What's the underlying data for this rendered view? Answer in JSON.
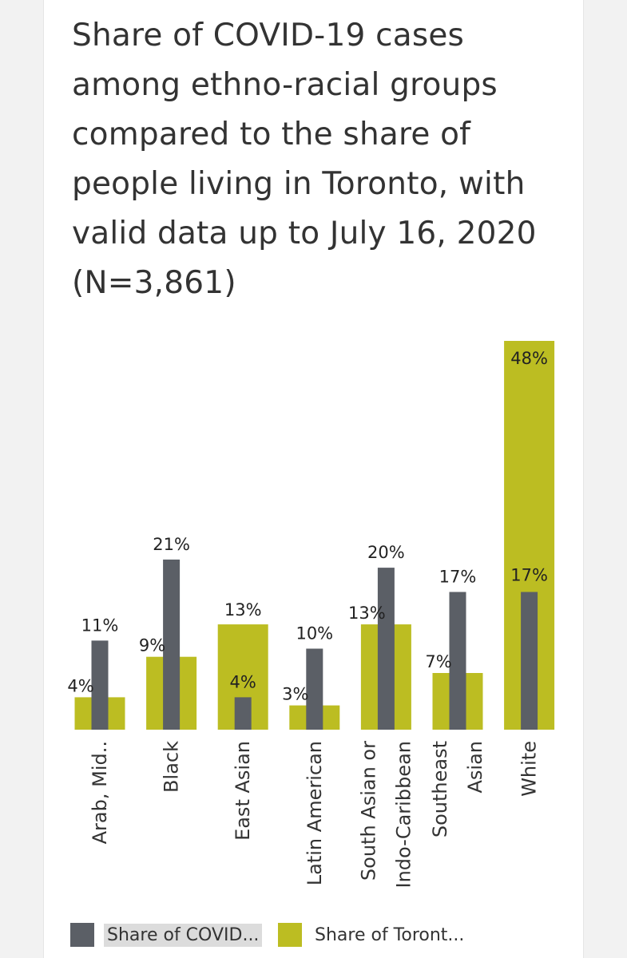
{
  "title": "Share of COVID-19 cases among ethno-racial groups compared to the share of people living in Toronto, with valid data up to July 16, 2020 (N=3,861)",
  "colors": {
    "covid": "#5b5f66",
    "toronto": "#bcbd22"
  },
  "legend": {
    "covid_label": "Share of COVID...",
    "toronto_label": "Share of Toront..."
  },
  "chart_data": {
    "type": "bar",
    "title": "Share of COVID-19 cases among ethno-racial groups compared to the share of people living in Toronto, with valid data up to July 16, 2020 (N=3,861)",
    "categories": [
      [
        "Arab, Mid.."
      ],
      [
        "Black"
      ],
      [
        "East Asian"
      ],
      [
        "Latin American"
      ],
      [
        "South Asian or",
        "Indo-Caribbean"
      ],
      [
        "Southeast",
        "Asian"
      ],
      [
        "White"
      ]
    ],
    "series": [
      {
        "name": "Share of COVID...",
        "values": [
          11,
          21,
          4,
          10,
          20,
          17,
          17
        ],
        "labels": [
          "11%",
          "21%",
          "4%",
          "10%",
          "20%",
          "17%",
          "17%"
        ]
      },
      {
        "name": "Share of Toront...",
        "values": [
          4,
          9,
          13,
          3,
          13,
          7,
          48
        ],
        "labels": [
          "4%",
          "9%",
          "13%",
          "3%",
          "13%",
          "7%",
          "48%"
        ]
      }
    ],
    "ylim": [
      0,
      48
    ],
    "legend_position": "bottom",
    "grid": false
  }
}
